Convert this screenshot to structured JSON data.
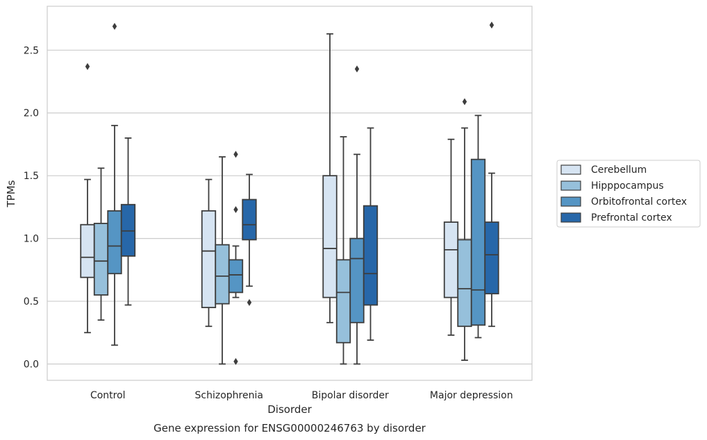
{
  "chart_data": {
    "type": "box",
    "title": "",
    "caption": "Gene expression for ENSG00000246763 by disorder",
    "xlabel": "Disorder",
    "ylabel": "TPMs",
    "ylim": [
      -0.13,
      2.85
    ],
    "yticks": [
      "0.0",
      "0.5",
      "1.0",
      "1.5",
      "2.0",
      "2.5"
    ],
    "grid": true,
    "legend_position": "right",
    "categories": [
      "Control",
      "Schizophrenia",
      "Bipolar disorder",
      "Major depression"
    ],
    "series": [
      {
        "name": "Cerebellum",
        "color": "#d6e4f2",
        "boxes": [
          {
            "whisker_low": 0.25,
            "q1": 0.69,
            "median": 0.85,
            "q3": 1.11,
            "whisker_high": 1.47,
            "outliers": [
              2.37
            ]
          },
          {
            "whisker_low": 0.3,
            "q1": 0.45,
            "median": 0.9,
            "q3": 1.22,
            "whisker_high": 1.47,
            "outliers": []
          },
          {
            "whisker_low": 0.33,
            "q1": 0.53,
            "median": 0.92,
            "q3": 1.5,
            "whisker_high": 2.63,
            "outliers": []
          },
          {
            "whisker_low": 0.23,
            "q1": 0.53,
            "median": 0.91,
            "q3": 1.13,
            "whisker_high": 1.79,
            "outliers": []
          }
        ]
      },
      {
        "name": "Hipppocampus",
        "color": "#96c0db",
        "boxes": [
          {
            "whisker_low": 0.35,
            "q1": 0.55,
            "median": 0.82,
            "q3": 1.12,
            "whisker_high": 1.56,
            "outliers": []
          },
          {
            "whisker_low": 0.0,
            "q1": 0.48,
            "median": 0.7,
            "q3": 0.95,
            "whisker_high": 1.65,
            "outliers": []
          },
          {
            "whisker_low": 0.0,
            "q1": 0.17,
            "median": 0.57,
            "q3": 0.83,
            "whisker_high": 1.81,
            "outliers": []
          },
          {
            "whisker_low": 0.03,
            "q1": 0.3,
            "median": 0.6,
            "q3": 0.99,
            "whisker_high": 1.88,
            "outliers": [
              2.09
            ]
          }
        ]
      },
      {
        "name": "Orbitofrontal cortex",
        "color": "#5595c4",
        "boxes": [
          {
            "whisker_low": 0.15,
            "q1": 0.72,
            "median": 0.94,
            "q3": 1.22,
            "whisker_high": 1.9,
            "outliers": [
              2.69
            ]
          },
          {
            "whisker_low": 0.53,
            "q1": 0.57,
            "median": 0.71,
            "q3": 0.83,
            "whisker_high": 0.94,
            "outliers": [
              1.23,
              1.67,
              0.02
            ]
          },
          {
            "whisker_low": 0.0,
            "q1": 0.33,
            "median": 0.84,
            "q3": 1.0,
            "whisker_high": 1.67,
            "outliers": [
              2.35
            ]
          },
          {
            "whisker_low": 0.21,
            "q1": 0.31,
            "median": 0.59,
            "q3": 1.63,
            "whisker_high": 1.98,
            "outliers": []
          }
        ]
      },
      {
        "name": "Prefrontal cortex",
        "color": "#2767a9",
        "boxes": [
          {
            "whisker_low": 0.47,
            "q1": 0.86,
            "median": 1.06,
            "q3": 1.27,
            "whisker_high": 1.8,
            "outliers": []
          },
          {
            "whisker_low": 0.62,
            "q1": 0.99,
            "median": 1.11,
            "q3": 1.31,
            "whisker_high": 1.51,
            "outliers": [
              0.49
            ]
          },
          {
            "whisker_low": 0.19,
            "q1": 0.47,
            "median": 0.72,
            "q3": 1.26,
            "whisker_high": 1.88,
            "outliers": []
          },
          {
            "whisker_low": 0.3,
            "q1": 0.56,
            "median": 0.87,
            "q3": 1.13,
            "whisker_high": 1.52,
            "outliers": [
              2.7
            ]
          }
        ]
      }
    ]
  }
}
